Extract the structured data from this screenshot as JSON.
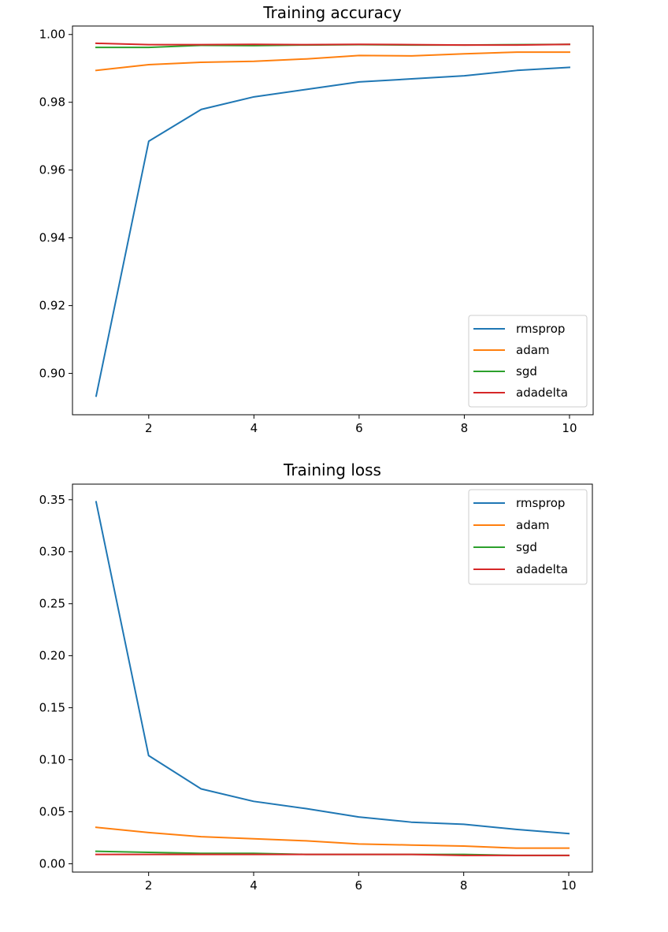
{
  "chart_data": [
    {
      "type": "line",
      "title": "Training accuracy",
      "xlabel": "",
      "ylabel": "",
      "x": [
        1,
        2,
        3,
        4,
        5,
        6,
        7,
        8,
        9,
        10
      ],
      "xlim": [
        0.55,
        10.45
      ],
      "ylim": [
        0.8878,
        1.0025
      ],
      "xticks": [
        2,
        4,
        6,
        8,
        10
      ],
      "xtick_labels": [
        "2",
        "4",
        "6",
        "8",
        "10"
      ],
      "yticks": [
        0.9,
        0.92,
        0.94,
        0.96,
        0.98,
        1.0
      ],
      "ytick_labels": [
        "0.90",
        "0.92",
        "0.94",
        "0.96",
        "0.98",
        "1.00"
      ],
      "legend_position": "lower-right",
      "grid": false,
      "series": [
        {
          "name": "rmsprop",
          "color": "#1f77b4",
          "values": [
            0.8933,
            0.9685,
            0.9779,
            0.9816,
            0.9838,
            0.986,
            0.9869,
            0.9878,
            0.9894,
            0.9903
          ]
        },
        {
          "name": "adam",
          "color": "#ff7f0e",
          "values": [
            0.9894,
            0.9911,
            0.9918,
            0.9921,
            0.9928,
            0.9938,
            0.9937,
            0.9943,
            0.9948,
            0.9948
          ]
        },
        {
          "name": "sgd",
          "color": "#2ca02c",
          "values": [
            0.9962,
            0.9962,
            0.9968,
            0.9967,
            0.9969,
            0.997,
            0.9969,
            0.9969,
            0.997,
            0.9971
          ]
        },
        {
          "name": "adadelta",
          "color": "#d62728",
          "values": [
            0.9974,
            0.997,
            0.997,
            0.9971,
            0.997,
            0.9971,
            0.997,
            0.9969,
            0.9969,
            0.9971
          ]
        }
      ]
    },
    {
      "type": "line",
      "title": "Training loss",
      "xlabel": "",
      "ylabel": "",
      "x": [
        1,
        2,
        3,
        4,
        5,
        6,
        7,
        8,
        9,
        10
      ],
      "xlim": [
        0.55,
        10.45
      ],
      "ylim": [
        -0.008,
        0.365
      ],
      "xticks": [
        2,
        4,
        6,
        8,
        10
      ],
      "xtick_labels": [
        "2",
        "4",
        "6",
        "8",
        "10"
      ],
      "yticks": [
        0.0,
        0.05,
        0.1,
        0.15,
        0.2,
        0.25,
        0.3,
        0.35
      ],
      "ytick_labels": [
        "0.00",
        "0.05",
        "0.10",
        "0.15",
        "0.20",
        "0.25",
        "0.30",
        "0.35"
      ],
      "legend_position": "upper-right",
      "grid": false,
      "series": [
        {
          "name": "rmsprop",
          "color": "#1f77b4",
          "values": [
            0.348,
            0.104,
            0.072,
            0.06,
            0.053,
            0.045,
            0.04,
            0.038,
            0.033,
            0.029
          ]
        },
        {
          "name": "adam",
          "color": "#ff7f0e",
          "values": [
            0.035,
            0.03,
            0.026,
            0.024,
            0.022,
            0.019,
            0.018,
            0.017,
            0.015,
            0.015
          ]
        },
        {
          "name": "sgd",
          "color": "#2ca02c",
          "values": [
            0.012,
            0.011,
            0.01,
            0.01,
            0.009,
            0.009,
            0.009,
            0.009,
            0.008,
            0.008
          ]
        },
        {
          "name": "adadelta",
          "color": "#d62728",
          "values": [
            0.009,
            0.009,
            0.009,
            0.009,
            0.009,
            0.009,
            0.009,
            0.008,
            0.008,
            0.008
          ]
        }
      ]
    }
  ]
}
